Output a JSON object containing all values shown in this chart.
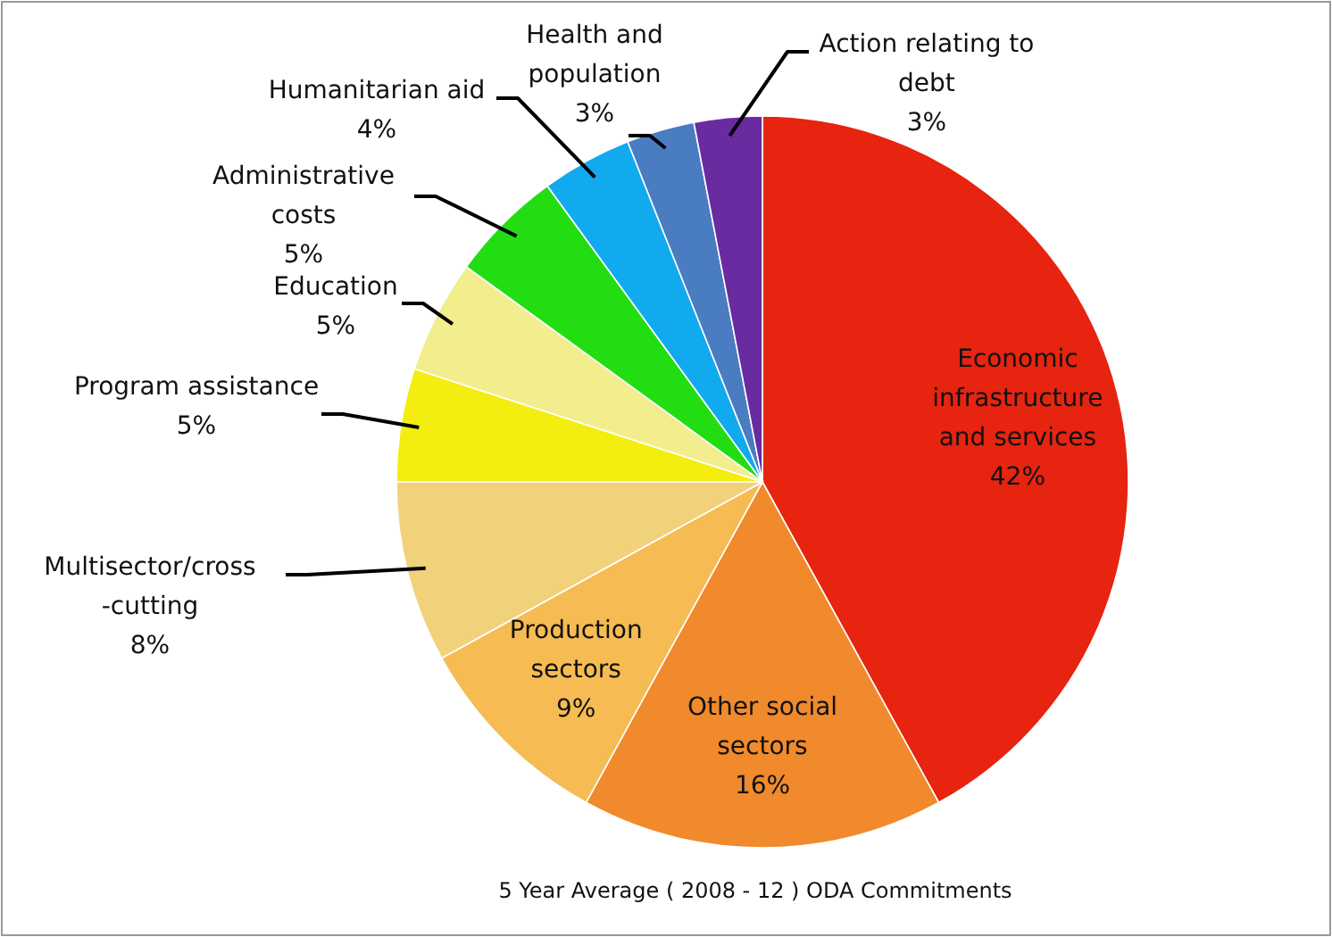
{
  "chart_data": {
    "type": "pie",
    "title": "5 Year Average ( 2008 - 12 ) ODA Commitments",
    "categories": [
      "Economic infrastructure and services",
      "Other social sectors",
      "Production sectors",
      "Multisector/cross-cutting",
      "Program assistance",
      "Education",
      "Administrative costs",
      "Humanitarian aid",
      "Health and population",
      "Action relating to debt"
    ],
    "values": [
      42,
      16,
      9,
      8,
      5,
      5,
      5,
      4,
      3,
      3
    ],
    "value_labels": [
      "42%",
      "16%",
      "9%",
      "8%",
      "5%",
      "5%",
      "5%",
      "4%",
      "3%",
      "3%"
    ],
    "colors": [
      "#e62410",
      "#f18a2c",
      "#f6bb52",
      "#f1d27a",
      "#f4ee10",
      "#f2ee8e",
      "#22dd11",
      "#12aaee",
      "#4a7cc2",
      "#6a2aa0"
    ]
  }
}
